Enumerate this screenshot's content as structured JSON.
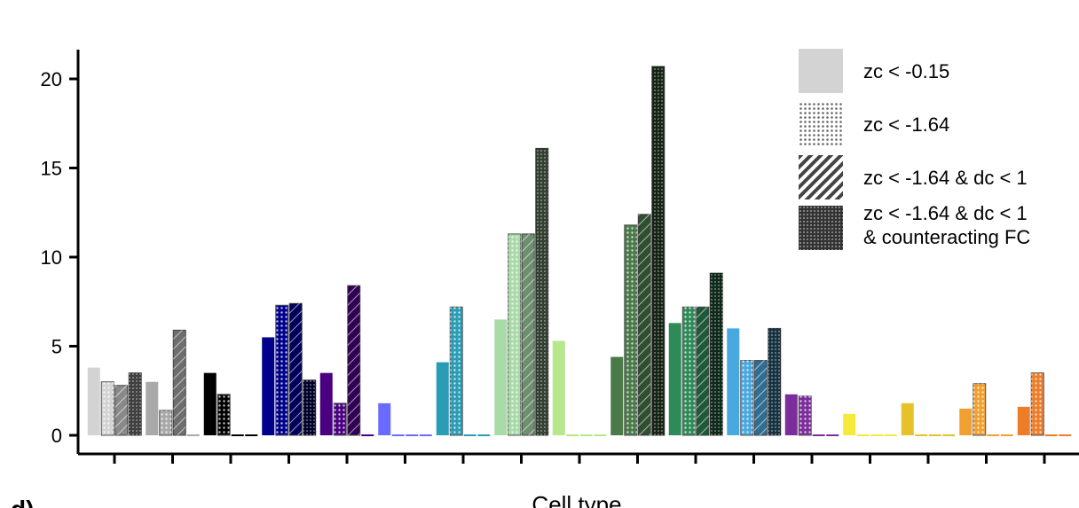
{
  "chart_data": {
    "type": "bar",
    "panel_label": "d)",
    "xlabel": "Cell type",
    "ylabel": "",
    "ylim": [
      0,
      21
    ],
    "yticks": [
      0,
      5,
      10,
      15,
      20
    ],
    "grid": false,
    "legend_position": "top-right",
    "series": [
      {
        "name": "zc < -0.15",
        "pattern": "solid"
      },
      {
        "name": "zc < -1.64",
        "pattern": "dots"
      },
      {
        "name": "zc < -1.64 & dc < 1",
        "pattern": "hatch"
      },
      {
        "name": "zc < -1.64 & dc < 1\n& counteracting FC",
        "pattern": "dense-dots"
      }
    ],
    "groups": [
      {
        "color": "#d3d3d3",
        "values": [
          3.8,
          3.0,
          2.8,
          3.5
        ]
      },
      {
        "color": "#a9a9a9",
        "values": [
          3.0,
          1.4,
          5.9,
          0.0
        ]
      },
      {
        "color": "#000000",
        "values": [
          3.5,
          2.3,
          0.0,
          0.0
        ]
      },
      {
        "color": "#00008b",
        "values": [
          5.5,
          7.3,
          7.4,
          3.1
        ]
      },
      {
        "color": "#4b0082",
        "values": [
          3.5,
          1.8,
          8.4,
          0.0
        ]
      },
      {
        "color": "#6a6aff",
        "values": [
          1.8,
          0.0,
          0.0,
          0.0
        ]
      },
      {
        "color": "#2a9db5",
        "values": [
          4.1,
          7.2,
          0.0,
          0.0
        ]
      },
      {
        "color": "#a8dba8",
        "values": [
          6.5,
          11.3,
          11.3,
          16.1
        ]
      },
      {
        "color": "#b8e68a",
        "values": [
          5.3,
          0.0,
          0.0,
          0.0
        ]
      },
      {
        "color": "#4a7a4a",
        "values": [
          4.4,
          11.8,
          12.4,
          20.7
        ]
      },
      {
        "color": "#2e8b57",
        "values": [
          6.3,
          7.2,
          7.2,
          9.1
        ]
      },
      {
        "color": "#4aa8e0",
        "values": [
          6.0,
          4.2,
          4.2,
          6.0
        ]
      },
      {
        "color": "#7b2d9b",
        "values": [
          2.3,
          2.2,
          0.0,
          0.0
        ]
      },
      {
        "color": "#f5ea3a",
        "values": [
          1.2,
          0.0,
          0.0,
          0.0
        ]
      },
      {
        "color": "#e6c229",
        "values": [
          1.8,
          0.0,
          0.0,
          0.0
        ]
      },
      {
        "color": "#f0a030",
        "values": [
          1.5,
          2.9,
          0.0,
          0.0
        ]
      },
      {
        "color": "#ee7d2a",
        "values": [
          1.6,
          3.5,
          0.0,
          0.0
        ]
      }
    ]
  }
}
